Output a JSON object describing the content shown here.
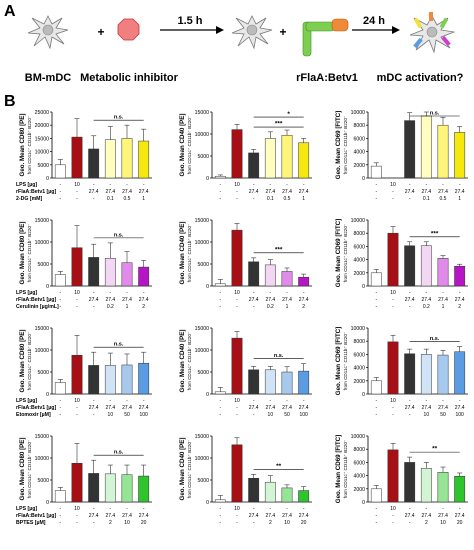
{
  "panel_a": {
    "label": "A",
    "steps": [
      "BM-mDC",
      "+",
      "Metabolic inhibitor",
      "+",
      "rFlaA:Betv1",
      "mDC activation?"
    ],
    "arrows": [
      "1.5 h",
      "24 h"
    ]
  },
  "panel_b": {
    "label": "B",
    "row_labels": {
      "lps": "LPS [µg]",
      "rfla": "rFlaA:Betv1 [µg]"
    },
    "common_values": {
      "lps": [
        "-",
        "10",
        "-",
        "-",
        "-",
        "-"
      ],
      "rfla": [
        "-",
        "-",
        "27.4",
        "27.4",
        "27.4",
        "27.4"
      ]
    }
  },
  "chart_data": [
    {
      "type": "bar",
      "row": 0,
      "col": 0,
      "ylabel": "Geo. Mean CD80 [PE]",
      "ysub": "from CD11c⁺ CD11b⁺ B220⁻",
      "ylim": [
        0,
        25000
      ],
      "yticks": [
        0,
        5000,
        10000,
        15000,
        20000,
        25000
      ],
      "inhibitor": "2-DG [mM]",
      "doses": [
        "-",
        "-",
        "-",
        "0.1",
        "0.5",
        "1"
      ],
      "values": [
        5000,
        15500,
        11000,
        14500,
        15000,
        14000
      ],
      "errors": [
        2000,
        7000,
        5000,
        5000,
        5000,
        4500
      ],
      "sig": "n.s."
    },
    {
      "type": "bar",
      "row": 0,
      "col": 1,
      "ylabel": "Geo. Mean CD40 [PE]",
      "ysub": "from CD11c⁺ CD11b⁺ B220⁻",
      "ylim": [
        0,
        15000
      ],
      "yticks": [
        0,
        5000,
        10000,
        15000
      ],
      "inhibitor": "2-DG [mM]",
      "doses": [
        "-",
        "-",
        "-",
        "0.1",
        "0.5",
        "1"
      ],
      "values": [
        400,
        11000,
        5700,
        9000,
        9700,
        8000
      ],
      "errors": [
        300,
        1200,
        800,
        1500,
        1200,
        1000
      ],
      "sig": "***",
      "sig2": "*"
    },
    {
      "type": "bar",
      "row": 0,
      "col": 2,
      "ylabel": "Geo. Mean CD69 [FITC]",
      "ysub": "from CD11c⁺ CD11b⁺ B220⁻",
      "ylim": [
        0,
        10000
      ],
      "yticks": [
        0,
        2000,
        4000,
        6000,
        8000,
        10000
      ],
      "inhibitor": "2-DG [mM]",
      "doses": [
        "-",
        "-",
        "-",
        "0.1",
        "0.5",
        "1"
      ],
      "values": [
        1800,
        0,
        8700,
        9400,
        8000,
        6900
      ],
      "errors": [
        500,
        0,
        1200,
        1500,
        1200,
        900
      ],
      "sig": "n.s."
    },
    {
      "type": "bar",
      "row": 1,
      "col": 0,
      "ylabel": "Geo. Mean CD80 [PE]",
      "ysub": "from CD11c⁺ CD11b⁺ B220⁻",
      "ylim": [
        0,
        15000
      ],
      "yticks": [
        0,
        5000,
        10000,
        15000
      ],
      "inhibitor": "Cerulinin [µg/mL]",
      "doses": [
        "-",
        "-",
        "-",
        "0.2",
        "1",
        "2"
      ],
      "values": [
        2600,
        8700,
        6500,
        6300,
        5300,
        4300
      ],
      "errors": [
        700,
        5000,
        3000,
        3500,
        2500,
        1500
      ],
      "sig": "n.s."
    },
    {
      "type": "bar",
      "row": 1,
      "col": 1,
      "ylabel": "Geo. Mean CD40 [PE]",
      "ysub": "from CD11c⁺ CD11b⁺ B220⁻",
      "ylim": [
        0,
        15000
      ],
      "yticks": [
        0,
        5000,
        10000,
        15000
      ],
      "inhibitor": "Cerulinin [µg/mL]",
      "doses": [
        "-",
        "-",
        "-",
        "0.2",
        "1",
        "2"
      ],
      "values": [
        500,
        12700,
        5500,
        4800,
        3300,
        2000
      ],
      "errors": [
        1000,
        1500,
        900,
        1200,
        800,
        700
      ],
      "sig": "***"
    },
    {
      "type": "bar",
      "row": 1,
      "col": 2,
      "ylabel": "Geo. Mean CD69 [FITC]",
      "ysub": "from CD11c⁺ CD11b⁺ B220⁻",
      "ylim": [
        0,
        10000
      ],
      "yticks": [
        0,
        2000,
        4000,
        6000,
        8000,
        10000
      ],
      "inhibitor": "Cerulinin [µg/mL]",
      "doses": [
        "-",
        "-",
        "-",
        "0.2",
        "1",
        "2"
      ],
      "values": [
        2000,
        8000,
        6100,
        6100,
        4200,
        3000
      ],
      "errors": [
        500,
        1000,
        600,
        600,
        400,
        300
      ],
      "sig": "***"
    },
    {
      "type": "bar",
      "row": 2,
      "col": 0,
      "ylabel": "Geo. Mean CD80 [PE]",
      "ysub": "from CD11c⁺ CD11b⁺ B220⁻",
      "ylim": [
        0,
        15000
      ],
      "yticks": [
        0,
        5000,
        10000,
        15000
      ],
      "inhibitor": "Etomoxir [µM]",
      "doses": [
        "-",
        "-",
        "-",
        "10",
        "50",
        "100"
      ],
      "values": [
        2600,
        8800,
        6500,
        6500,
        6600,
        7000
      ],
      "errors": [
        700,
        4500,
        3000,
        2800,
        2500,
        2500
      ],
      "sig": "n.s."
    },
    {
      "type": "bar",
      "row": 2,
      "col": 1,
      "ylabel": "Geo. Mean CD40 [PE]",
      "ysub": "from CD11c⁺ CD11b⁺ B220⁻",
      "ylim": [
        0,
        15000
      ],
      "yticks": [
        0,
        5000,
        10000,
        15000
      ],
      "inhibitor": "Etomoxir [µM]",
      "doses": [
        "-",
        "-",
        "-",
        "10",
        "50",
        "100"
      ],
      "values": [
        500,
        12700,
        5500,
        5500,
        5000,
        5200
      ],
      "errors": [
        1000,
        1500,
        800,
        800,
        1200,
        1700
      ],
      "sig": "n.s."
    },
    {
      "type": "bar",
      "row": 2,
      "col": 2,
      "ylabel": "Geo. Mean CD69 [FITC]",
      "ysub": "from CD11c⁺ CD11b⁺ B220⁻",
      "ylim": [
        0,
        10000
      ],
      "yticks": [
        0,
        2000,
        4000,
        6000,
        8000,
        10000
      ],
      "inhibitor": "Etomoxir [µM]",
      "doses": [
        "-",
        "-",
        "-",
        "10",
        "50",
        "100"
      ],
      "values": [
        2000,
        7900,
        6100,
        6000,
        5900,
        6400
      ],
      "errors": [
        500,
        1000,
        700,
        800,
        700,
        800
      ],
      "sig": "n.s."
    },
    {
      "type": "bar",
      "row": 3,
      "col": 0,
      "ylabel": "Geo. Mean CD80 [PE]",
      "ysub": "from CD11c⁺ CD11b⁺ B220⁻",
      "ylim": [
        0,
        15000
      ],
      "yticks": [
        0,
        5000,
        10000,
        15000
      ],
      "inhibitor": "BPTES [µM]",
      "doses": [
        "-",
        "-",
        "-",
        "2",
        "10",
        "20"
      ],
      "values": [
        2600,
        8800,
        6500,
        6400,
        6200,
        5900
      ],
      "errors": [
        700,
        4500,
        3000,
        2000,
        2200,
        2500
      ],
      "sig": "n.s."
    },
    {
      "type": "bar",
      "row": 3,
      "col": 1,
      "ylabel": "Geo. Mean CD40 [PE]",
      "ysub": "from CD11c⁺ CD11b⁺ B220⁻",
      "ylim": [
        0,
        15000
      ],
      "yticks": [
        0,
        5000,
        10000,
        15000
      ],
      "inhibitor": "BPTES [µM]",
      "doses": [
        "-",
        "-",
        "-",
        "2",
        "10",
        "20"
      ],
      "values": [
        500,
        13000,
        5400,
        4500,
        3200,
        2600
      ],
      "errors": [
        1000,
        1600,
        900,
        1500,
        700,
        900
      ],
      "sig": "**"
    },
    {
      "type": "bar",
      "row": 3,
      "col": 2,
      "ylabel": "Geo. Mean CD69 [FITC]",
      "ysub": "from CD11c⁺ CD11b⁺ B220⁻",
      "ylim": [
        0,
        10000
      ],
      "yticks": [
        0,
        2000,
        4000,
        6000,
        8000,
        10000
      ],
      "inhibitor": "BPTES [µM]",
      "doses": [
        "-",
        "-",
        "-",
        "2",
        "10",
        "20"
      ],
      "values": [
        2000,
        7900,
        6000,
        5100,
        4500,
        3900
      ],
      "errors": [
        500,
        1000,
        800,
        900,
        800,
        500
      ],
      "sig": "**"
    }
  ],
  "colors": {
    "row0": [
      "#ffffff",
      "#a50f15",
      "#333333",
      "#fffdc0",
      "#fff57a",
      "#f5e80f"
    ],
    "row1": [
      "#ffffff",
      "#a50f15",
      "#333333",
      "#f2d6f4",
      "#e08be9",
      "#b515c4"
    ],
    "row2": [
      "#ffffff",
      "#a50f15",
      "#333333",
      "#d0e3f7",
      "#a8c9ee",
      "#5a9ce3"
    ],
    "row3": [
      "#ffffff",
      "#a50f15",
      "#333333",
      "#d4f5d4",
      "#96e596",
      "#2ec42e"
    ]
  }
}
